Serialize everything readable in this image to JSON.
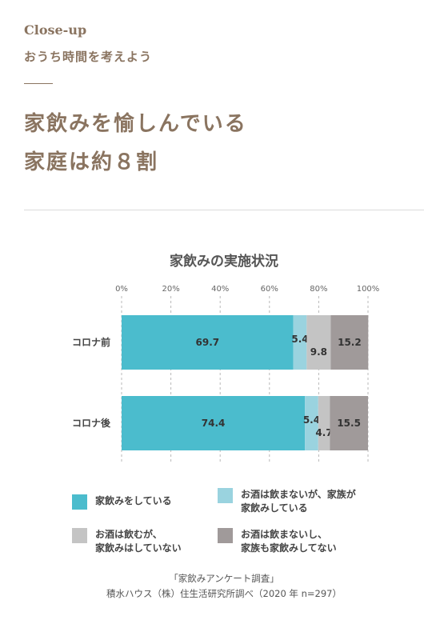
{
  "header": {
    "eyebrow": "Close-up",
    "subhead": "おうち時間を考えよう",
    "headline_line1": "家飲みを愉しんでいる",
    "headline_line2": "家庭は約８割"
  },
  "chart_data": {
    "type": "bar",
    "orientation": "horizontal-stacked-100",
    "title": "家飲みの実施状況",
    "categories": [
      "コロナ前",
      "コロナ後"
    ],
    "x_ticks": [
      "0%",
      "20%",
      "40%",
      "60%",
      "80%",
      "100%"
    ],
    "xlim": [
      0,
      100
    ],
    "grid": "dashed-vertical",
    "series": [
      {
        "name": "家飲みをしている",
        "color": "#4bbccd",
        "values": [
          69.7,
          74.4
        ],
        "labels": [
          "69.7",
          "74.4"
        ]
      },
      {
        "name": "お酒は飲まないが、家族が\n家飲みしている",
        "color": "#9ad3df",
        "values": [
          5.4,
          5.4
        ],
        "labels": [
          "5.4",
          "5.4"
        ]
      },
      {
        "name": "お酒は飲むが、\n家飲みはしていない",
        "color": "#c4c4c4",
        "values": [
          9.8,
          4.7
        ],
        "labels": [
          "9.8",
          "4.7"
        ]
      },
      {
        "name": "お酒は飲まないし、\n家族も家飲みしてない",
        "color": "#a09a9a",
        "values": [
          15.2,
          15.5
        ],
        "labels": [
          "15.2",
          "15.5"
        ]
      }
    ],
    "legend_position": "bottom"
  },
  "source": {
    "line1": "「家飲みアンケート調査」",
    "line2": "積水ハウス（株）住生活研究所調べ（2020 年 n=297）"
  }
}
